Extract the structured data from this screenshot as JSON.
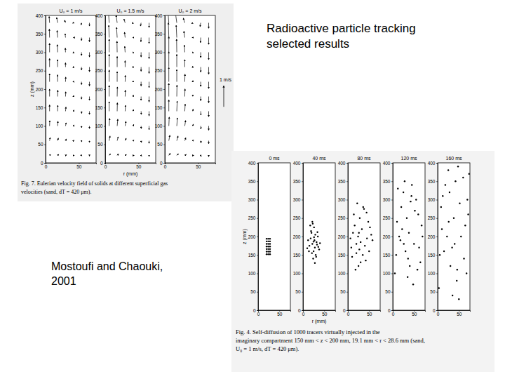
{
  "slide": {
    "title": [
      "Radioactive particle tracking",
      "selected results"
    ],
    "credit": [
      "Mostoufi and Chaouki,",
      "2001"
    ],
    "captions": [
      [
        "Fig. 7. Eulerian velocity field of solids at different superficial gas",
        "velocities (sand, dT = 420 μm)."
      ],
      [
        "Fig. 4. Self-diffusion of 1000 tracers virtually injected in the",
        "imaginary compartment 150 mm < z < 200 mm, 19.1 mm < r < 28.6 mm (sand,",
        "U₀ = 1 m/s, dT = 420 μm)."
      ]
    ]
  },
  "chart_data": [
    {
      "type": "quiver",
      "title": "U₀ = 1 m/s",
      "y_label": "z (mm)",
      "color": "#000000",
      "xlim": [
        0,
        76
      ],
      "xticks": [
        0,
        50
      ],
      "ylim": [
        0,
        400
      ],
      "yticks": [
        0,
        50,
        100,
        150,
        200,
        250,
        300,
        350,
        400
      ],
      "x": [
        6,
        18,
        30,
        42,
        54,
        66
      ],
      "y": [
        20,
        60,
        100,
        140,
        180,
        220,
        260,
        300,
        340,
        380
      ],
      "v": [
        [
          0.05,
          0.05,
          0.03,
          0.0,
          -0.02,
          -0.03
        ],
        [
          0.15,
          0.12,
          0.08,
          0.02,
          -0.05,
          -0.08
        ],
        [
          0.25,
          0.22,
          0.15,
          0.05,
          -0.08,
          -0.12
        ],
        [
          0.3,
          0.28,
          0.2,
          0.06,
          -0.1,
          -0.15
        ],
        [
          0.35,
          0.3,
          0.22,
          0.05,
          -0.12,
          -0.18
        ],
        [
          0.38,
          0.33,
          0.22,
          0.04,
          -0.13,
          -0.2
        ],
        [
          0.4,
          0.35,
          0.2,
          0.03,
          -0.14,
          -0.22
        ],
        [
          0.42,
          0.36,
          0.2,
          0.02,
          -0.15,
          -0.22
        ],
        [
          0.4,
          0.33,
          0.18,
          0.0,
          -0.14,
          -0.2
        ],
        [
          0.3,
          0.25,
          0.12,
          -0.02,
          -0.1,
          -0.15
        ]
      ],
      "u": [
        [
          0.05,
          0.06,
          0.05,
          0.04,
          0.02,
          0.0
        ],
        [
          0.03,
          0.04,
          0.04,
          0.03,
          0.02,
          0.0
        ],
        [
          0.01,
          0.02,
          0.03,
          0.03,
          0.01,
          0.0
        ],
        [
          0.0,
          0.01,
          0.02,
          0.02,
          0.01,
          0.0
        ],
        [
          0.0,
          0.01,
          0.01,
          0.01,
          0.0,
          0.0
        ],
        [
          0.0,
          0.0,
          0.01,
          0.01,
          0.0,
          0.0
        ],
        [
          0.0,
          0.0,
          0.0,
          0.0,
          0.0,
          0.0
        ],
        [
          0.0,
          -0.01,
          -0.01,
          0.0,
          0.0,
          0.0
        ],
        [
          -0.01,
          -0.02,
          -0.02,
          -0.01,
          0.0,
          0.0
        ],
        [
          -0.02,
          -0.04,
          -0.05,
          -0.04,
          -0.02,
          0.0
        ]
      ]
    },
    {
      "type": "quiver",
      "title": "U₀ = 1.5 m/s",
      "x_label": "r (mm)",
      "color": "#000000",
      "xlim": [
        0,
        76
      ],
      "xticks": [
        0,
        50
      ],
      "ylim": [
        0,
        400
      ],
      "yticks": [
        0,
        50,
        100,
        150,
        200,
        250,
        300,
        350,
        400
      ],
      "x": [
        6,
        18,
        30,
        42,
        54,
        66
      ],
      "y": [
        20,
        60,
        100,
        140,
        180,
        220,
        260,
        300,
        340,
        380
      ],
      "v": [
        [
          0.08,
          0.07,
          0.04,
          0.0,
          -0.03,
          -0.05
        ],
        [
          0.22,
          0.18,
          0.12,
          0.03,
          -0.08,
          -0.12
        ],
        [
          0.36,
          0.32,
          0.22,
          0.07,
          -0.12,
          -0.18
        ],
        [
          0.45,
          0.4,
          0.28,
          0.08,
          -0.15,
          -0.22
        ],
        [
          0.52,
          0.45,
          0.3,
          0.07,
          -0.18,
          -0.26
        ],
        [
          0.56,
          0.48,
          0.3,
          0.05,
          -0.2,
          -0.28
        ],
        [
          0.6,
          0.5,
          0.3,
          0.04,
          -0.2,
          -0.3
        ],
        [
          0.62,
          0.52,
          0.28,
          0.02,
          -0.22,
          -0.3
        ],
        [
          0.58,
          0.48,
          0.25,
          0.0,
          -0.2,
          -0.28
        ],
        [
          0.45,
          0.36,
          0.18,
          -0.03,
          -0.15,
          -0.22
        ]
      ],
      "u": [
        [
          0.06,
          0.07,
          0.06,
          0.05,
          0.03,
          0.0
        ],
        [
          0.04,
          0.05,
          0.05,
          0.04,
          0.02,
          0.0
        ],
        [
          0.02,
          0.03,
          0.04,
          0.03,
          0.01,
          0.0
        ],
        [
          0.0,
          0.01,
          0.02,
          0.02,
          0.01,
          0.0
        ],
        [
          0.0,
          0.01,
          0.01,
          0.01,
          0.0,
          0.0
        ],
        [
          0.0,
          0.0,
          0.01,
          0.01,
          0.0,
          0.0
        ],
        [
          0.0,
          0.0,
          0.0,
          0.0,
          0.0,
          0.0
        ],
        [
          0.0,
          -0.01,
          -0.02,
          -0.01,
          0.0,
          0.0
        ],
        [
          -0.02,
          -0.03,
          -0.03,
          -0.02,
          -0.01,
          0.0
        ],
        [
          -0.03,
          -0.05,
          -0.06,
          -0.05,
          -0.03,
          0.0
        ]
      ]
    },
    {
      "type": "quiver",
      "title": "U₀ = 2 m/s",
      "color": "#000000",
      "scale_arrow": {
        "value": 1,
        "label": "1 m/s"
      },
      "xlim": [
        0,
        76
      ],
      "xticks": [
        0,
        50
      ],
      "ylim": [
        0,
        400
      ],
      "yticks": [
        0,
        50,
        100,
        150,
        200,
        250,
        300,
        350,
        400
      ],
      "x": [
        6,
        18,
        30,
        42,
        54,
        66
      ],
      "y": [
        20,
        60,
        100,
        140,
        180,
        220,
        260,
        300,
        340,
        380
      ],
      "v": [
        [
          0.1,
          0.08,
          0.05,
          0.0,
          -0.04,
          -0.06
        ],
        [
          0.26,
          0.22,
          0.14,
          0.04,
          -0.1,
          -0.14
        ],
        [
          0.42,
          0.38,
          0.26,
          0.08,
          -0.14,
          -0.2
        ],
        [
          0.54,
          0.48,
          0.34,
          0.1,
          -0.18,
          -0.26
        ],
        [
          0.62,
          0.54,
          0.36,
          0.08,
          -0.2,
          -0.3
        ],
        [
          0.68,
          0.58,
          0.36,
          0.06,
          -0.22,
          -0.32
        ],
        [
          0.72,
          0.6,
          0.35,
          0.04,
          -0.24,
          -0.34
        ],
        [
          0.74,
          0.62,
          0.34,
          0.02,
          -0.25,
          -0.35
        ],
        [
          0.7,
          0.58,
          0.3,
          0.0,
          -0.24,
          -0.32
        ],
        [
          0.55,
          0.44,
          0.22,
          -0.04,
          -0.18,
          -0.26
        ]
      ],
      "u": [
        [
          0.07,
          0.08,
          0.07,
          0.05,
          0.03,
          0.0
        ],
        [
          0.05,
          0.06,
          0.05,
          0.04,
          0.02,
          0.0
        ],
        [
          0.02,
          0.03,
          0.04,
          0.03,
          0.01,
          0.0
        ],
        [
          0.0,
          0.02,
          0.02,
          0.02,
          0.01,
          0.0
        ],
        [
          0.0,
          0.01,
          0.01,
          0.01,
          0.0,
          0.0
        ],
        [
          0.0,
          0.0,
          0.01,
          0.01,
          0.0,
          0.0
        ],
        [
          0.0,
          0.0,
          0.0,
          0.0,
          0.0,
          0.0
        ],
        [
          0.0,
          -0.01,
          -0.02,
          -0.01,
          0.0,
          0.0
        ],
        [
          -0.02,
          -0.03,
          -0.04,
          -0.03,
          -0.01,
          0.0
        ],
        [
          -0.04,
          -0.06,
          -0.07,
          -0.05,
          -0.03,
          0.0
        ]
      ]
    },
    {
      "type": "scatter",
      "title": "0 ms",
      "y_label": "z (mm)",
      "color": "#000000",
      "marker": "dot",
      "xlim": [
        0,
        76
      ],
      "xticks": [
        0,
        50
      ],
      "ylim": [
        0,
        400
      ],
      "yticks": [
        0,
        50,
        100,
        150,
        200,
        250,
        300,
        350,
        400
      ],
      "x": [
        20,
        24,
        28,
        20,
        24,
        28,
        20,
        24,
        28,
        20,
        24,
        28,
        20,
        24,
        28,
        20,
        24,
        28,
        20,
        24,
        28
      ],
      "y": [
        152,
        152,
        152,
        159,
        159,
        159,
        166,
        166,
        166,
        173,
        173,
        173,
        180,
        180,
        180,
        187,
        187,
        187,
        194,
        194,
        194
      ]
    },
    {
      "type": "scatter",
      "title": "40 ms",
      "x_label": "r (mm)",
      "color": "#000000",
      "marker": "dot",
      "xlim": [
        0,
        76
      ],
      "xticks": [
        0,
        50
      ],
      "ylim": [
        0,
        400
      ],
      "yticks": [
        0,
        50,
        100,
        150,
        200,
        250,
        300,
        350,
        400
      ],
      "x": [
        22,
        28,
        18,
        32,
        25,
        15,
        35,
        20,
        30,
        26,
        12,
        38,
        24,
        29,
        17,
        33,
        21,
        27,
        10,
        40,
        23,
        31,
        19,
        36,
        26,
        14,
        28,
        22,
        34,
        25
      ],
      "y": [
        180,
        170,
        195,
        185,
        160,
        175,
        200,
        210,
        150,
        225,
        190,
        165,
        140,
        205,
        230,
        178,
        155,
        190,
        168,
        182,
        235,
        145,
        215,
        172,
        198,
        160,
        128,
        240,
        212,
        186
      ]
    },
    {
      "type": "scatter",
      "title": "80 ms",
      "color": "#000000",
      "marker": "dot",
      "xlim": [
        0,
        76
      ],
      "xticks": [
        0,
        50
      ],
      "ylim": [
        0,
        400
      ],
      "yticks": [
        0,
        50,
        100,
        150,
        200,
        250,
        300,
        350,
        400
      ],
      "x": [
        20,
        35,
        12,
        45,
        28,
        8,
        50,
        25,
        38,
        16,
        55,
        30,
        22,
        42,
        10,
        33,
        48,
        18,
        27,
        58,
        14,
        40,
        24,
        36,
        6,
        52,
        30,
        20,
        44,
        26
      ],
      "y": [
        180,
        150,
        210,
        195,
        250,
        170,
        160,
        120,
        275,
        230,
        205,
        185,
        290,
        135,
        145,
        220,
        240,
        110,
        165,
        190,
        260,
        175,
        200,
        280,
        195,
        225,
        130,
        155,
        265,
        210
      ]
    },
    {
      "type": "scatter",
      "title": "120 ms",
      "color": "#000000",
      "marker": "dot",
      "xlim": [
        0,
        76
      ],
      "xticks": [
        0,
        50
      ],
      "ylim": [
        0,
        400
      ],
      "yticks": [
        0,
        50,
        100,
        150,
        200,
        250,
        300,
        350,
        400
      ],
      "x": [
        15,
        40,
        60,
        25,
        8,
        50,
        35,
        68,
        20,
        45,
        30,
        10,
        55,
        38,
        5,
        62,
        28,
        48,
        18,
        65,
        33,
        42,
        12,
        58,
        22,
        52,
        36,
        70,
        26,
        44
      ],
      "y": [
        200,
        120,
        260,
        320,
        150,
        180,
        90,
        230,
        280,
        340,
        160,
        240,
        300,
        210,
        100,
        170,
        350,
        70,
        190,
        130,
        250,
        295,
        330,
        110,
        220,
        270,
        140,
        200,
        180,
        310
      ]
    },
    {
      "type": "scatter",
      "title": "160 ms",
      "color": "#000000",
      "marker": "dot",
      "xlim": [
        0,
        76
      ],
      "xticks": [
        0,
        50
      ],
      "ylim": [
        0,
        400
      ],
      "yticks": [
        0,
        50,
        100,
        150,
        200,
        250,
        300,
        350,
        400
      ],
      "x": [
        10,
        45,
        70,
        25,
        5,
        55,
        35,
        72,
        18,
        48,
        30,
        8,
        60,
        40,
        3,
        65,
        28,
        50,
        15,
        68,
        38,
        42,
        12,
        62,
        22,
        52,
        34,
        74,
        26,
        46
      ],
      "y": [
        220,
        80,
        300,
        380,
        150,
        200,
        40,
        260,
        340,
        390,
        120,
        280,
        360,
        180,
        60,
        230,
        320,
        30,
        160,
        100,
        250,
        350,
        310,
        140,
        200,
        290,
        170,
        370,
        240,
        110
      ]
    }
  ]
}
